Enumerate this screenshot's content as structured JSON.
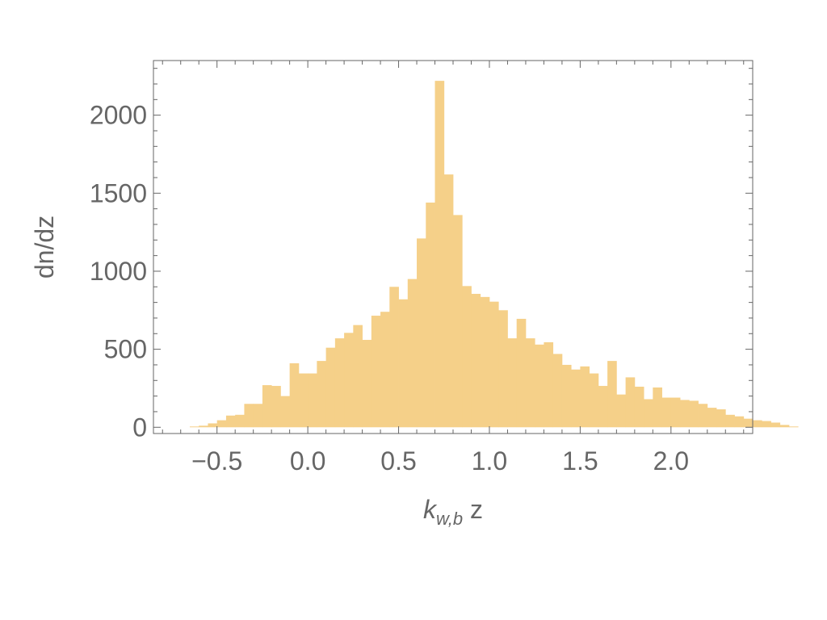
{
  "chart_data": {
    "type": "bar",
    "xlabel_main": "k",
    "xlabel_sub": "w,b",
    "xlabel_tail": " z",
    "ylabel": "dn/dz",
    "xlim": [
      -0.85,
      2.45
    ],
    "ylim": [
      -40,
      2350
    ],
    "xticks": [
      {
        "value": -0.5,
        "label": "−0.5"
      },
      {
        "value": 0.0,
        "label": "0.0"
      },
      {
        "value": 0.5,
        "label": "0.5"
      },
      {
        "value": 1.0,
        "label": "1.0"
      },
      {
        "value": 1.5,
        "label": "1.5"
      },
      {
        "value": 2.0,
        "label": "2.0"
      }
    ],
    "yticks": [
      {
        "value": 0,
        "label": "0"
      },
      {
        "value": 500,
        "label": "500"
      },
      {
        "value": 1000,
        "label": "1000"
      },
      {
        "value": 1500,
        "label": "1500"
      },
      {
        "value": 2000,
        "label": "2000"
      }
    ],
    "bin_width": 0.05,
    "bin_start": -0.65,
    "values": [
      5,
      10,
      25,
      45,
      75,
      80,
      150,
      150,
      270,
      265,
      200,
      410,
      345,
      345,
      425,
      510,
      570,
      605,
      655,
      560,
      715,
      740,
      900,
      820,
      950,
      1210,
      1440,
      2220,
      1620,
      1360,
      905,
      855,
      835,
      805,
      750,
      570,
      695,
      570,
      530,
      545,
      470,
      400,
      370,
      390,
      345,
      265,
      425,
      210,
      320,
      260,
      180,
      255,
      190,
      190,
      175,
      170,
      150,
      125,
      115,
      80,
      70,
      55,
      45,
      40,
      30,
      15,
      5
    ],
    "bar_color": "#f5d089",
    "grid": false,
    "legend": "none"
  }
}
